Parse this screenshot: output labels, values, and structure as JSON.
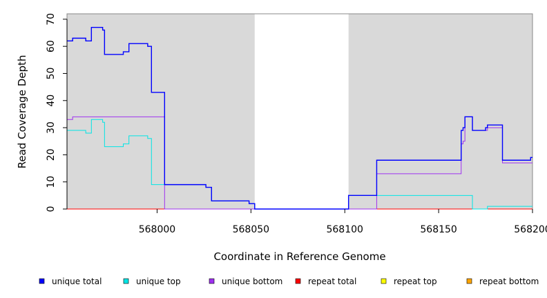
{
  "chart_data": {
    "type": "line",
    "title": "",
    "xlabel": "Coordinate in Reference Genome",
    "ylabel": "Read Coverage Depth",
    "xlim": [
      567952,
      568200
    ],
    "ylim": [
      0,
      72
    ],
    "x_ticks": [
      568000,
      568050,
      568100,
      568150,
      568200
    ],
    "y_ticks": [
      0,
      10,
      20,
      30,
      40,
      50,
      60,
      70
    ],
    "shaded_regions": [
      [
        567952,
        568052
      ],
      [
        568102,
        568200
      ]
    ],
    "legend_placement": "bottom",
    "colors": {
      "shade": "#d9d9d9",
      "unique_total": "#0000ff",
      "unique_top": "#00e5e5",
      "unique_bottom": "#9f30f0",
      "repeat_total": "#ff0000",
      "repeat_top": "#ffff00",
      "repeat_bottom": "#ffa500"
    },
    "series": [
      {
        "name": "unique total",
        "key": "unique_total",
        "step": true,
        "x": [
          567952,
          567955,
          567962,
          567965,
          567971,
          567972,
          567982,
          567985,
          567995,
          567997,
          568004,
          568026,
          568029,
          568049,
          568052,
          568101,
          568102,
          568117,
          568162,
          568163,
          568164,
          568168,
          568175,
          568176,
          568184,
          568199,
          568200
        ],
        "y": [
          62,
          63,
          62,
          67,
          66,
          57,
          58,
          61,
          60,
          43,
          9,
          8,
          3,
          2,
          0,
          0,
          5,
          18,
          29,
          30,
          34,
          29,
          30,
          31,
          18,
          19,
          19
        ]
      },
      {
        "name": "unique top",
        "key": "unique_top",
        "step": true,
        "x": [
          567952,
          567962,
          567965,
          567971,
          567972,
          567982,
          567985,
          567995,
          567997,
          568004,
          568026,
          568029,
          568049,
          568052,
          568101,
          568102,
          568117,
          568168,
          568176,
          568200
        ],
        "y": [
          29,
          28,
          33,
          32,
          23,
          24,
          27,
          26,
          9,
          9,
          8,
          3,
          2,
          0,
          0,
          5,
          5,
          0,
          1,
          1
        ]
      },
      {
        "name": "unique bottom",
        "key": "unique_bottom",
        "step": true,
        "x": [
          567952,
          567955,
          568004,
          568117,
          568162,
          568163,
          568164,
          568168,
          568175,
          568176,
          568184,
          568200
        ],
        "y": [
          33,
          34,
          0,
          13,
          24,
          25,
          34,
          29,
          29,
          30,
          17,
          17
        ]
      },
      {
        "name": "repeat total",
        "key": "repeat_total",
        "step": true,
        "x": [
          567952,
          568200
        ],
        "y": [
          0,
          0
        ]
      },
      {
        "name": "repeat top",
        "key": "repeat_top",
        "step": true,
        "x": [
          567952,
          568200
        ],
        "y": [
          0,
          0
        ]
      },
      {
        "name": "repeat bottom",
        "key": "repeat_bottom",
        "step": true,
        "x": [
          567952,
          568200
        ],
        "y": [
          0,
          0
        ]
      }
    ]
  }
}
